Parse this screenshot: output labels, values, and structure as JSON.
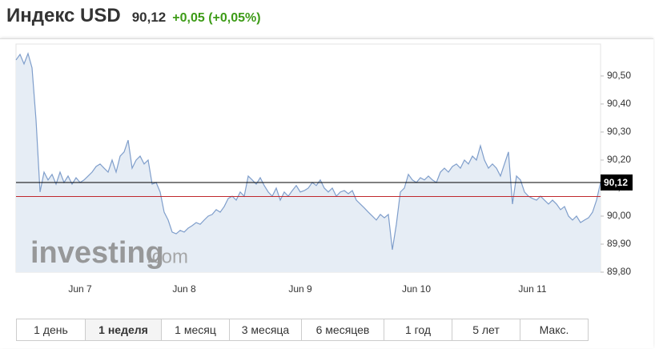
{
  "header": {
    "title": "Индекс USD",
    "price": "90,12",
    "change": "+0,05 (+0,05%)"
  },
  "watermark": {
    "brand": "investing",
    "domain": ".com"
  },
  "range_buttons": [
    "1 день",
    "1 неделя",
    "1 месяц",
    "3 месяца",
    "6 месяцев",
    "1 год",
    "5 лет",
    "Макс."
  ],
  "chart_data": {
    "type": "area",
    "color": "#7f9ecb",
    "fill": "#e6edf5",
    "categories": [
      null,
      null,
      null,
      null,
      null,
      null,
      null,
      null,
      null,
      null,
      null,
      null,
      null,
      null,
      null,
      null,
      "Jun 7",
      null,
      null,
      null,
      null,
      null,
      null,
      null,
      null,
      null,
      null,
      null,
      null,
      null,
      null,
      null,
      null,
      null,
      null,
      null,
      null,
      null,
      null,
      null,
      null,
      null,
      "Jun 8",
      null,
      null,
      null,
      null,
      null,
      null,
      null,
      null,
      null,
      null,
      null,
      null,
      null,
      null,
      null,
      null,
      null,
      null,
      null,
      null,
      null,
      null,
      null,
      null,
      null,
      null,
      null,
      null,
      "Jun 9",
      null,
      null,
      null,
      null,
      null,
      null,
      null,
      null,
      null,
      null,
      null,
      null,
      null,
      null,
      null,
      null,
      null,
      null,
      null,
      null,
      null,
      null,
      null,
      null,
      null,
      null,
      null,
      null,
      "Jun 10",
      null,
      null,
      null,
      null,
      null,
      null,
      null,
      null,
      null,
      null,
      null,
      null,
      null,
      null,
      null,
      null,
      null,
      null,
      null,
      null,
      null,
      null,
      null,
      null,
      null,
      null,
      null,
      null,
      "Jun 11",
      null,
      null,
      null,
      null,
      null,
      null,
      null,
      null,
      null,
      null,
      null,
      null,
      null,
      null,
      null,
      null,
      null
    ],
    "values": [
      90.557,
      90.577,
      90.543,
      90.58,
      90.529,
      90.343,
      90.086,
      90.157,
      90.129,
      90.149,
      90.114,
      90.157,
      90.12,
      90.143,
      90.114,
      90.137,
      90.12,
      90.129,
      90.143,
      90.157,
      90.177,
      90.186,
      90.171,
      90.157,
      90.2,
      90.157,
      90.214,
      90.229,
      90.271,
      90.171,
      90.2,
      90.214,
      90.186,
      90.2,
      90.114,
      90.12,
      90.086,
      90.014,
      89.986,
      89.943,
      89.937,
      89.949,
      89.943,
      89.957,
      89.966,
      89.977,
      89.971,
      89.986,
      90.0,
      90.006,
      90.023,
      90.014,
      90.034,
      90.063,
      90.071,
      90.057,
      90.086,
      90.071,
      90.143,
      90.129,
      90.114,
      90.137,
      90.109,
      90.086,
      90.071,
      90.1,
      90.057,
      90.086,
      90.071,
      90.091,
      90.109,
      90.086,
      90.091,
      90.1,
      90.12,
      90.109,
      90.129,
      90.1,
      90.086,
      90.1,
      90.071,
      90.086,
      90.091,
      90.08,
      90.091,
      90.057,
      90.043,
      90.029,
      90.014,
      90.0,
      89.986,
      90.006,
      89.994,
      90.006,
      89.88,
      89.971,
      90.086,
      90.1,
      90.149,
      90.129,
      90.12,
      90.137,
      90.129,
      90.143,
      90.129,
      90.12,
      90.157,
      90.171,
      90.157,
      90.177,
      90.186,
      90.171,
      90.2,
      90.186,
      90.214,
      90.2,
      90.251,
      90.2,
      90.171,
      90.186,
      90.171,
      90.143,
      90.186,
      90.229,
      90.043,
      90.143,
      90.129,
      90.086,
      90.071,
      90.063,
      90.057,
      90.071,
      90.057,
      90.043,
      90.057,
      90.043,
      90.023,
      90.034,
      90.0,
      89.986,
      90.0,
      89.977,
      89.986,
      89.994,
      90.014,
      90.057,
      90.12
    ],
    "ylim": [
      89.8,
      90.614
    ],
    "yticks": [
      {
        "value": 89.8,
        "label": "89,80"
      },
      {
        "value": 89.9,
        "label": "89,90"
      },
      {
        "value": 90.0,
        "label": "90,00"
      },
      {
        "value": 90.1,
        "label": "90,10"
      },
      {
        "value": 90.2,
        "label": "90,20"
      },
      {
        "value": 90.3,
        "label": "90,30"
      },
      {
        "value": 90.4,
        "label": "90,40"
      },
      {
        "value": 90.5,
        "label": "90,50"
      }
    ],
    "reference_lines": [
      {
        "value": 90.07,
        "color": "#c0282d"
      },
      {
        "value": 90.12,
        "color": "#000000",
        "label": "90,12"
      }
    ],
    "grid": false
  }
}
